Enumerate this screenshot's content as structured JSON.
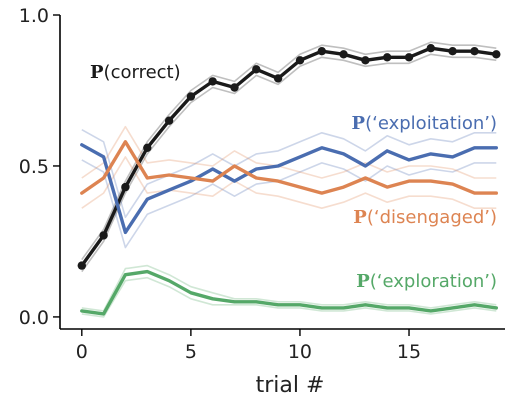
{
  "chart_data": {
    "type": "line",
    "title": "",
    "xlabel": "trial #",
    "ylabel": "",
    "xlim": [
      -1,
      19.4
    ],
    "ylim": [
      -0.04,
      1.0
    ],
    "xticks": [
      0,
      5,
      10,
      15
    ],
    "xtick_labels": [
      "0",
      "5",
      "10",
      "15"
    ],
    "yticks": [
      0.0,
      0.5,
      1.0
    ],
    "ytick_labels": [
      "0.0",
      "0.5",
      "1.0"
    ],
    "grid": false,
    "legend": "none",
    "x": [
      0,
      1,
      2,
      3,
      4,
      5,
      6,
      7,
      8,
      9,
      10,
      11,
      12,
      13,
      14,
      15,
      16,
      17,
      18,
      19
    ],
    "series": [
      {
        "name": "P(correct)",
        "label_prefix": "P",
        "label_rest": "(correct)",
        "color": "#1a1a1a",
        "markers": true,
        "values": [
          0.17,
          0.27,
          0.43,
          0.56,
          0.65,
          0.73,
          0.78,
          0.76,
          0.82,
          0.79,
          0.85,
          0.88,
          0.87,
          0.85,
          0.86,
          0.86,
          0.89,
          0.88,
          0.88,
          0.87
        ],
        "runs": [
          [
            0.15,
            0.25,
            0.41,
            0.54,
            0.63,
            0.71,
            0.76,
            0.74,
            0.8,
            0.77,
            0.83,
            0.86,
            0.85,
            0.83,
            0.84,
            0.84,
            0.87,
            0.86,
            0.86,
            0.85
          ],
          [
            0.19,
            0.29,
            0.45,
            0.58,
            0.67,
            0.75,
            0.8,
            0.78,
            0.84,
            0.81,
            0.87,
            0.9,
            0.89,
            0.87,
            0.88,
            0.88,
            0.91,
            0.9,
            0.9,
            0.89
          ]
        ]
      },
      {
        "name": "P('exploitation')",
        "label_prefix": "P",
        "label_rest": "(‘exploitation’)",
        "color": "#4a6db0",
        "markers": false,
        "values": [
          0.57,
          0.53,
          0.28,
          0.39,
          0.42,
          0.45,
          0.49,
          0.45,
          0.49,
          0.5,
          0.53,
          0.56,
          0.54,
          0.5,
          0.55,
          0.52,
          0.54,
          0.53,
          0.56,
          0.56
        ],
        "runs": [
          [
            0.62,
            0.58,
            0.33,
            0.44,
            0.47,
            0.5,
            0.54,
            0.5,
            0.54,
            0.55,
            0.58,
            0.61,
            0.59,
            0.55,
            0.6,
            0.57,
            0.59,
            0.58,
            0.61,
            0.61
          ],
          [
            0.52,
            0.48,
            0.23,
            0.34,
            0.37,
            0.4,
            0.44,
            0.4,
            0.44,
            0.45,
            0.48,
            0.51,
            0.49,
            0.45,
            0.5,
            0.47,
            0.49,
            0.48,
            0.51,
            0.51
          ]
        ]
      },
      {
        "name": "P('disengaged')",
        "label_prefix": "P",
        "label_rest": "(‘disengaged’)",
        "color": "#dd8452",
        "markers": false,
        "values": [
          0.41,
          0.46,
          0.58,
          0.46,
          0.47,
          0.46,
          0.45,
          0.5,
          0.46,
          0.45,
          0.43,
          0.41,
          0.43,
          0.46,
          0.43,
          0.45,
          0.45,
          0.44,
          0.41,
          0.41
        ],
        "runs": [
          [
            0.46,
            0.51,
            0.63,
            0.51,
            0.52,
            0.51,
            0.5,
            0.55,
            0.51,
            0.5,
            0.48,
            0.46,
            0.48,
            0.51,
            0.48,
            0.5,
            0.5,
            0.49,
            0.46,
            0.46
          ],
          [
            0.36,
            0.41,
            0.53,
            0.41,
            0.42,
            0.41,
            0.4,
            0.45,
            0.41,
            0.4,
            0.38,
            0.36,
            0.38,
            0.41,
            0.38,
            0.4,
            0.4,
            0.39,
            0.36,
            0.36
          ]
        ]
      },
      {
        "name": "P('exploration')",
        "label_prefix": "P",
        "label_rest": "(‘exploration’)",
        "color": "#55a868",
        "markers": false,
        "values": [
          0.02,
          0.01,
          0.14,
          0.15,
          0.12,
          0.08,
          0.06,
          0.05,
          0.05,
          0.04,
          0.04,
          0.03,
          0.03,
          0.04,
          0.03,
          0.03,
          0.02,
          0.03,
          0.04,
          0.03
        ],
        "runs": [
          [
            0.03,
            0.02,
            0.16,
            0.17,
            0.14,
            0.1,
            0.08,
            0.06,
            0.06,
            0.05,
            0.05,
            0.04,
            0.04,
            0.05,
            0.04,
            0.04,
            0.03,
            0.04,
            0.05,
            0.04
          ],
          [
            0.01,
            0.0,
            0.12,
            0.13,
            0.1,
            0.06,
            0.04,
            0.04,
            0.04,
            0.03,
            0.03,
            0.02,
            0.02,
            0.03,
            0.02,
            0.02,
            0.01,
            0.02,
            0.03,
            0.02
          ]
        ]
      }
    ]
  }
}
